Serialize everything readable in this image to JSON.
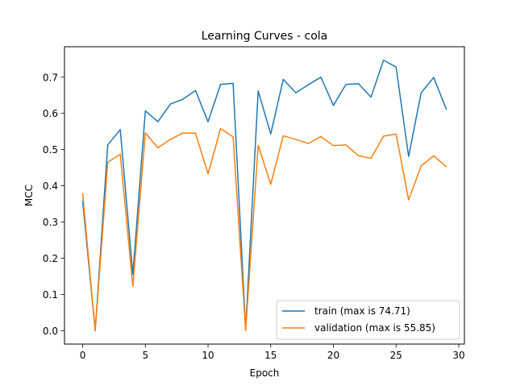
{
  "chart_data": {
    "type": "line",
    "title": "Learning Curves - cola",
    "xlabel": "Epoch",
    "ylabel": "MCC",
    "xlim": [
      -1.45,
      30.45
    ],
    "ylim": [
      -0.037,
      0.784
    ],
    "x_ticks": [
      0,
      5,
      10,
      15,
      20,
      25,
      30
    ],
    "y_ticks": [
      0.0,
      0.1,
      0.2,
      0.3,
      0.4,
      0.5,
      0.6,
      0.7
    ],
    "y_tick_labels": [
      "0.0",
      "0.1",
      "0.2",
      "0.3",
      "0.4",
      "0.5",
      "0.6",
      "0.7"
    ],
    "grid": false,
    "legend_position": "lower-right",
    "x": [
      0,
      1,
      2,
      3,
      4,
      5,
      6,
      7,
      8,
      9,
      10,
      11,
      12,
      13,
      14,
      15,
      16,
      17,
      18,
      19,
      20,
      21,
      22,
      23,
      24,
      25,
      26,
      27,
      28,
      29
    ],
    "series": [
      {
        "name": "train (max is 74.71)",
        "color": "#1f77b4",
        "values": [
          0.357,
          0.0,
          0.513,
          0.555,
          0.155,
          0.607,
          0.577,
          0.626,
          0.639,
          0.663,
          0.577,
          0.68,
          0.683,
          0.002,
          0.662,
          0.543,
          0.694,
          0.657,
          0.679,
          0.7,
          0.622,
          0.68,
          0.682,
          0.645,
          0.747,
          0.728,
          0.481,
          0.657,
          0.699,
          0.612
        ]
      },
      {
        "name": "validation (max is 55.85)",
        "color": "#ff7f0e",
        "values": [
          0.378,
          0.0,
          0.465,
          0.487,
          0.122,
          0.546,
          0.505,
          0.528,
          0.546,
          0.545,
          0.433,
          0.558,
          0.535,
          0.0,
          0.512,
          0.404,
          0.538,
          0.528,
          0.517,
          0.536,
          0.511,
          0.513,
          0.483,
          0.476,
          0.537,
          0.543,
          0.361,
          0.455,
          0.483,
          0.453
        ]
      }
    ]
  }
}
